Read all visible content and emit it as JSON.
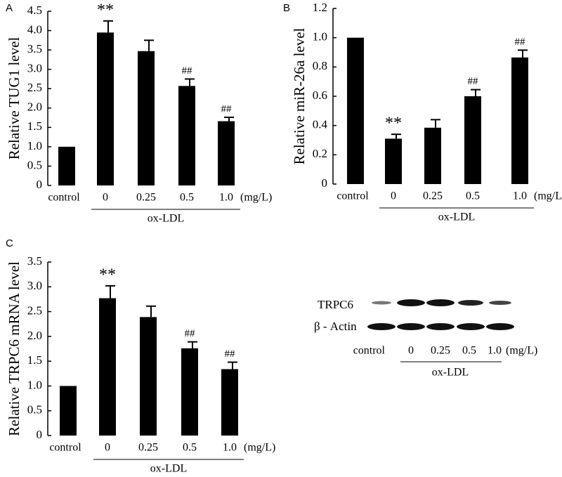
{
  "chart_data": [
    {
      "type": "bar",
      "panel": "A",
      "ylabel": "Relative TUG1 level",
      "categories": [
        "control",
        "0",
        "0.25",
        "0.5",
        "1.0"
      ],
      "unit": "(mg/L)",
      "group_label": "ox-LDL",
      "values": [
        1.0,
        3.95,
        3.47,
        2.57,
        1.66
      ],
      "errors": [
        null,
        0.3,
        0.28,
        0.18,
        0.1
      ],
      "annotations": [
        null,
        "**",
        null,
        "##",
        "##"
      ],
      "color": "#000000",
      "ylim": [
        0,
        4.5
      ],
      "yticks": [
        0,
        0.5,
        {
          "value": 1,
          "label": "1.0"
        },
        1.5,
        {
          "value": 2,
          "label": "2.0"
        },
        2.5,
        {
          "value": 3,
          "label": "3.0"
        },
        3.5,
        {
          "value": 4,
          "label": "4.0"
        },
        4.5
      ]
    },
    {
      "type": "bar",
      "panel": "B",
      "ylabel": "Relative miR-26a level",
      "categories": [
        "control",
        "0",
        "0.25",
        "0.5",
        "1.0"
      ],
      "unit": "(mg/L",
      "group_label": "ox-LDL",
      "values": [
        1.0,
        0.31,
        0.385,
        0.6,
        0.865
      ],
      "errors": [
        null,
        0.03,
        0.055,
        0.045,
        0.05
      ],
      "annotations": [
        null,
        "**",
        null,
        "##",
        "##"
      ],
      "color": "#000000",
      "ylim": [
        0,
        1.2
      ],
      "yticks": [
        0,
        0.2,
        0.4,
        0.6,
        0.8,
        {
          "value": 1,
          "label": "1.0"
        },
        1.2
      ]
    },
    {
      "type": "bar",
      "panel": "C",
      "ylabel": "Relative TRPC6 mRNA level",
      "categories": [
        "control",
        "0",
        "0.25",
        "0.5",
        "1.0"
      ],
      "unit": "(mg/L)",
      "group_label": "ox-LDL",
      "values": [
        1.0,
        2.77,
        2.39,
        1.76,
        1.34
      ],
      "errors": [
        null,
        0.25,
        0.22,
        0.13,
        0.14
      ],
      "annotations": [
        null,
        "**",
        null,
        "##",
        "##"
      ],
      "color": "#000000",
      "ylim": [
        0,
        3.5
      ],
      "yticks": [
        0,
        0.5,
        {
          "value": 1,
          "label": "1.0"
        },
        1.5,
        {
          "value": 2,
          "label": "2.0"
        },
        2.5,
        {
          "value": 3,
          "label": "3.0"
        },
        3.5
      ]
    }
  ],
  "blot": {
    "rows": [
      "TRPC6",
      "β - Actin"
    ],
    "lanes": [
      "control",
      "0",
      "0.25",
      "0.5",
      "1.0"
    ],
    "unit": "(mg/L)",
    "group_label": "ox-LDL"
  }
}
